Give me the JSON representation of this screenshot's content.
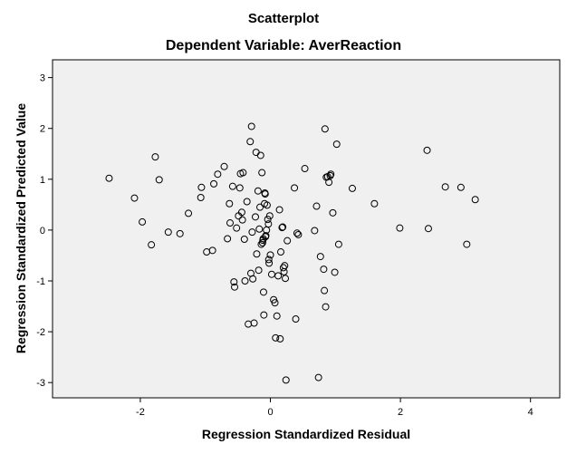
{
  "chart_data": {
    "type": "scatter",
    "title": "Scatterplot",
    "subtitle": "Dependent Variable: AverReaction",
    "xlabel": "Regression Standardized Residual",
    "ylabel": "Regression Standardized Predicted Value",
    "xlim": [
      -3.35,
      4.45
    ],
    "ylim": [
      -3.3,
      3.35
    ],
    "xticks": [
      "-2",
      "0",
      "2",
      "4"
    ],
    "yticks": [
      "3",
      "2",
      "1",
      "0",
      "-1",
      "-2",
      "-3"
    ],
    "xtick_values": [
      -2,
      0,
      2,
      4
    ],
    "ytick_values": [
      3,
      2,
      1,
      0,
      -1,
      -2,
      -3
    ],
    "grid": false,
    "plot_background": "#f0f0f0",
    "marker": "hollow-circle",
    "points": [
      [
        -2.48,
        1.02
      ],
      [
        -2.09,
        0.63
      ],
      [
        -1.97,
        0.16
      ],
      [
        -1.83,
        -0.29
      ],
      [
        -1.77,
        1.44
      ],
      [
        -1.71,
        0.99
      ],
      [
        -1.57,
        -0.04
      ],
      [
        -1.39,
        -0.07
      ],
      [
        -1.26,
        0.33
      ],
      [
        -1.07,
        0.64
      ],
      [
        -1.06,
        0.84
      ],
      [
        -0.98,
        -0.43
      ],
      [
        -0.89,
        -0.4
      ],
      [
        -0.87,
        0.91
      ],
      [
        -0.81,
        1.1
      ],
      [
        -0.71,
        1.25
      ],
      [
        -0.66,
        -0.17
      ],
      [
        -0.63,
        0.52
      ],
      [
        -0.62,
        0.14
      ],
      [
        -0.58,
        0.86
      ],
      [
        -0.56,
        -1.02
      ],
      [
        -0.55,
        -1.12
      ],
      [
        -0.52,
        0.04
      ],
      [
        -0.49,
        0.28
      ],
      [
        -0.47,
        0.83
      ],
      [
        -0.46,
        1.11
      ],
      [
        -0.44,
        0.35
      ],
      [
        -0.43,
        0.2
      ],
      [
        -0.42,
        1.13
      ],
      [
        -0.4,
        -0.18
      ],
      [
        -0.39,
        -1.0
      ],
      [
        -0.36,
        0.56
      ],
      [
        -0.34,
        -1.85
      ],
      [
        -0.31,
        1.74
      ],
      [
        -0.3,
        -0.85
      ],
      [
        -0.29,
        2.04
      ],
      [
        -0.28,
        -0.04
      ],
      [
        -0.27,
        -0.96
      ],
      [
        -0.25,
        -1.83
      ],
      [
        -0.23,
        0.26
      ],
      [
        -0.22,
        1.53
      ],
      [
        -0.21,
        -0.47
      ],
      [
        -0.19,
        0.77
      ],
      [
        -0.18,
        -0.79
      ],
      [
        -0.17,
        0.02
      ],
      [
        -0.16,
        0.45
      ],
      [
        -0.15,
        1.47
      ],
      [
        -0.14,
        -0.28
      ],
      [
        -0.13,
        1.13
      ],
      [
        -0.12,
        -0.25
      ],
      [
        -0.115,
        -0.2
      ],
      [
        -0.11,
        -0.17
      ],
      [
        -0.105,
        -1.22
      ],
      [
        -0.1,
        -1.67
      ],
      [
        -0.09,
        0.52
      ],
      [
        -0.085,
        0.73
      ],
      [
        -0.08,
        0.71
      ],
      [
        -0.075,
        -0.13
      ],
      [
        -0.07,
        -0.11
      ],
      [
        -0.06,
        0.0
      ],
      [
        -0.05,
        0.49
      ],
      [
        -0.04,
        0.21
      ],
      [
        -0.03,
        0.12
      ],
      [
        -0.025,
        -0.58
      ],
      [
        -0.02,
        -0.65
      ],
      [
        -0.01,
        0.28
      ],
      [
        0.0,
        -0.49
      ],
      [
        0.02,
        -0.87
      ],
      [
        0.05,
        -1.37
      ],
      [
        0.07,
        -1.43
      ],
      [
        0.08,
        -2.12
      ],
      [
        0.1,
        -1.69
      ],
      [
        0.12,
        -0.9
      ],
      [
        0.14,
        0.4
      ],
      [
        0.15,
        -2.14
      ],
      [
        0.16,
        -0.43
      ],
      [
        0.18,
        0.05
      ],
      [
        0.19,
        0.06
      ],
      [
        0.2,
        -0.74
      ],
      [
        0.21,
        -0.82
      ],
      [
        0.22,
        -0.7
      ],
      [
        0.23,
        -0.95
      ],
      [
        0.24,
        -2.95
      ],
      [
        0.26,
        -0.21
      ],
      [
        0.37,
        0.83
      ],
      [
        0.39,
        -1.75
      ],
      [
        0.41,
        -0.06
      ],
      [
        0.43,
        -0.09
      ],
      [
        0.53,
        1.21
      ],
      [
        0.68,
        -0.01
      ],
      [
        0.71,
        0.47
      ],
      [
        0.74,
        -2.9
      ],
      [
        0.77,
        -0.52
      ],
      [
        0.82,
        -0.77
      ],
      [
        0.83,
        -1.19
      ],
      [
        0.84,
        1.99
      ],
      [
        0.85,
        -1.51
      ],
      [
        0.86,
        1.04
      ],
      [
        0.88,
        1.05
      ],
      [
        0.9,
        0.94
      ],
      [
        0.92,
        1.07
      ],
      [
        0.93,
        1.1
      ],
      [
        0.96,
        0.34
      ],
      [
        0.99,
        -0.83
      ],
      [
        1.02,
        1.69
      ],
      [
        1.05,
        -0.28
      ],
      [
        1.26,
        0.82
      ],
      [
        1.6,
        0.52
      ],
      [
        1.99,
        0.04
      ],
      [
        2.41,
        1.57
      ],
      [
        2.43,
        0.03
      ],
      [
        2.69,
        0.85
      ],
      [
        2.93,
        0.84
      ],
      [
        3.02,
        -0.28
      ],
      [
        3.15,
        0.6
      ]
    ]
  }
}
